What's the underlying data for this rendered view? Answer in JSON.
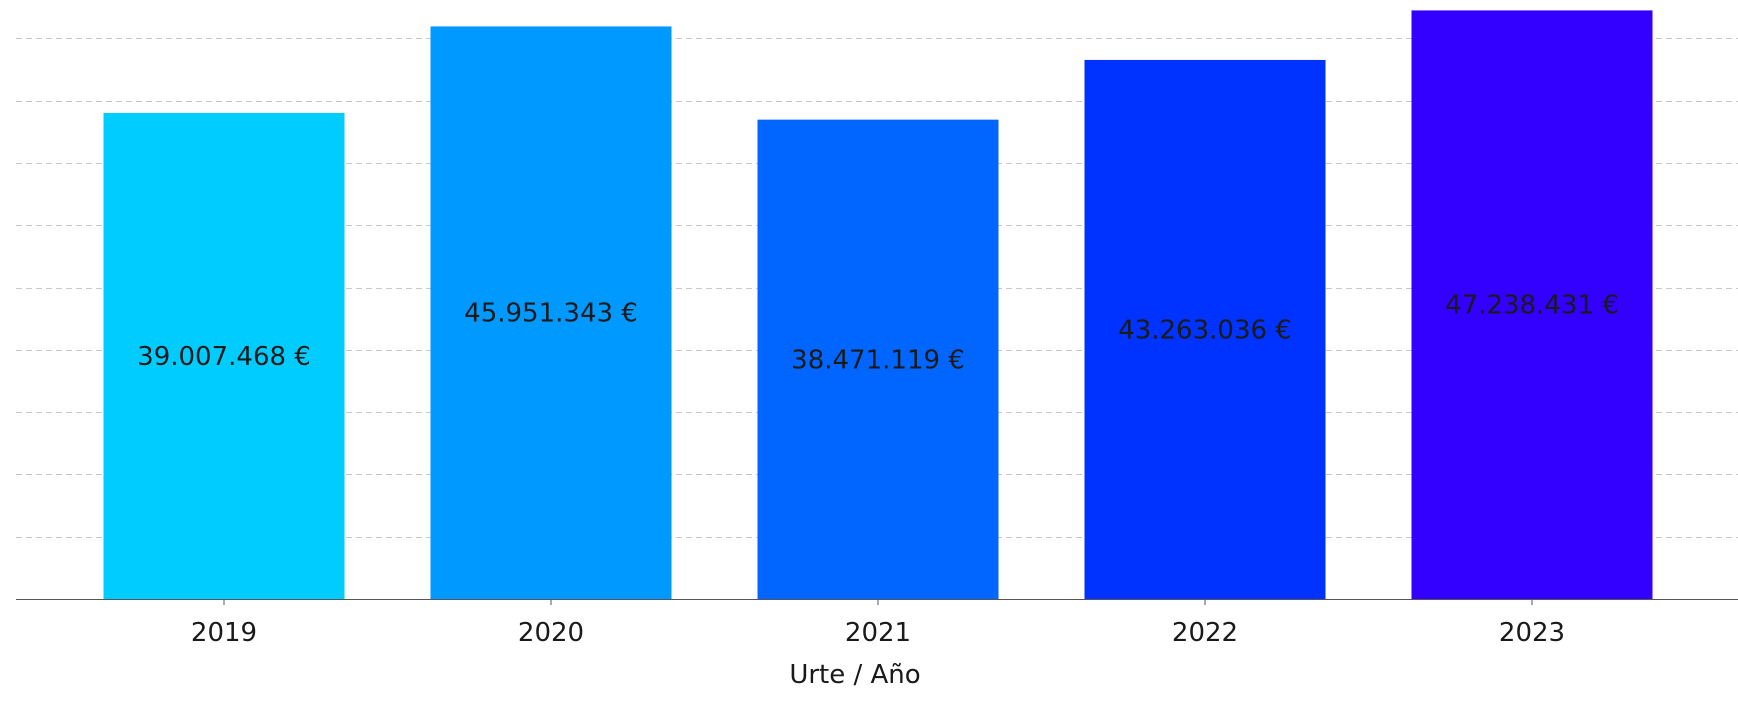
{
  "chart_data": {
    "type": "bar",
    "title": "",
    "xlabel": "Urte / Año",
    "ylabel": "",
    "categories": [
      "2019",
      "2020",
      "2021",
      "2022",
      "2023"
    ],
    "values": [
      39007468,
      45951343,
      38471119,
      43263036,
      47238431
    ],
    "value_labels": [
      "39.007.468 €",
      "45.951.343 €",
      "38.471.119 €",
      "43.263.036 €",
      "47.238.431 €"
    ],
    "bar_colors": [
      "#00CCFF",
      "#0099FF",
      "#0066FF",
      "#0033FF",
      "#3300FF"
    ],
    "ylim": [
      0,
      47500000
    ],
    "y_gridline_step": 5000000,
    "grid": true,
    "grid_style": "dashed horizontal",
    "grid_color": "#c8c8c8",
    "legend": "none"
  }
}
